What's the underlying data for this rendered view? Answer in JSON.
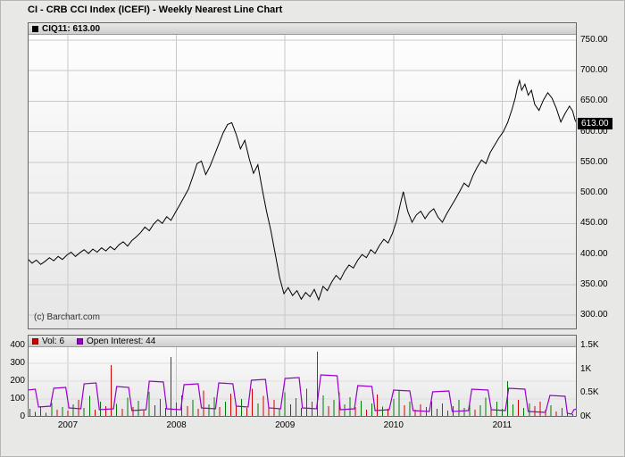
{
  "title": "CI - CRB CCI Index (ICEFI) - Weekly Nearest Line Chart",
  "copyright": "(c) Barchart.com",
  "price_tag": "613.00",
  "legend": {
    "symbol": "CIQ11: 613.00",
    "vol": "Vol: 6",
    "oi": "Open Interest: 44"
  },
  "colors": {
    "line": "#000000",
    "volume_up": "#007a00",
    "volume_down": "#d40000",
    "open_interest": "#9900cc",
    "grid": "#c9c9c9",
    "grid_light": "#dedede",
    "frame": "#666666",
    "swatch_symbol": "#000000",
    "tag_bg": "#000000",
    "tag_text": "#ffffff"
  },
  "chart_data": [
    {
      "type": "line",
      "name": "CIQ11 weekly nearest close",
      "title": "CI - CRB CCI Index (ICEFI) - Weekly Nearest Line Chart",
      "legend_position": "top-left",
      "grid": true,
      "last_value": 613.0,
      "xlim": [
        2006.63,
        2011.69
      ],
      "ylim": [
        300,
        750
      ],
      "x_ticks": [
        2007,
        2008,
        2009,
        2010,
        2011
      ],
      "x_tick_labels": [
        "2007",
        "2008",
        "2009",
        "2010",
        "2011"
      ],
      "y_ticks": [
        750,
        700,
        650,
        600,
        550,
        500,
        450,
        400,
        350,
        300
      ],
      "y_tick_labels": [
        "750.00",
        "700.00",
        "650.00",
        "600.00",
        "550.00",
        "500.00",
        "450.00",
        "400.00",
        "350.00",
        "300.00"
      ],
      "points": [
        [
          2006.63,
          392
        ],
        [
          2006.67,
          385
        ],
        [
          2006.71,
          390
        ],
        [
          2006.75,
          383
        ],
        [
          2006.79,
          388
        ],
        [
          2006.83,
          394
        ],
        [
          2006.87,
          389
        ],
        [
          2006.91,
          396
        ],
        [
          2006.95,
          391
        ],
        [
          2006.99,
          398
        ],
        [
          2007.03,
          403
        ],
        [
          2007.07,
          396
        ],
        [
          2007.11,
          402
        ],
        [
          2007.15,
          407
        ],
        [
          2007.19,
          401
        ],
        [
          2007.23,
          408
        ],
        [
          2007.27,
          403
        ],
        [
          2007.31,
          410
        ],
        [
          2007.35,
          405
        ],
        [
          2007.39,
          412
        ],
        [
          2007.43,
          407
        ],
        [
          2007.47,
          415
        ],
        [
          2007.51,
          420
        ],
        [
          2007.55,
          413
        ],
        [
          2007.59,
          422
        ],
        [
          2007.63,
          428
        ],
        [
          2007.67,
          435
        ],
        [
          2007.71,
          444
        ],
        [
          2007.75,
          438
        ],
        [
          2007.79,
          449
        ],
        [
          2007.83,
          456
        ],
        [
          2007.87,
          450
        ],
        [
          2007.91,
          461
        ],
        [
          2007.95,
          455
        ],
        [
          2007.99,
          468
        ],
        [
          2008.03,
          480
        ],
        [
          2008.07,
          493
        ],
        [
          2008.11,
          506
        ],
        [
          2008.15,
          526
        ],
        [
          2008.19,
          548
        ],
        [
          2008.23,
          552
        ],
        [
          2008.27,
          530
        ],
        [
          2008.31,
          544
        ],
        [
          2008.35,
          562
        ],
        [
          2008.39,
          580
        ],
        [
          2008.43,
          598
        ],
        [
          2008.47,
          612
        ],
        [
          2008.51,
          615
        ],
        [
          2008.55,
          596
        ],
        [
          2008.59,
          572
        ],
        [
          2008.63,
          586
        ],
        [
          2008.67,
          556
        ],
        [
          2008.71,
          532
        ],
        [
          2008.75,
          546
        ],
        [
          2008.79,
          506
        ],
        [
          2008.83,
          470
        ],
        [
          2008.87,
          438
        ],
        [
          2008.91,
          400
        ],
        [
          2008.95,
          362
        ],
        [
          2008.99,
          335
        ],
        [
          2009.03,
          345
        ],
        [
          2009.07,
          332
        ],
        [
          2009.11,
          340
        ],
        [
          2009.15,
          326
        ],
        [
          2009.19,
          337
        ],
        [
          2009.23,
          330
        ],
        [
          2009.27,
          342
        ],
        [
          2009.31,
          325
        ],
        [
          2009.35,
          347
        ],
        [
          2009.39,
          340
        ],
        [
          2009.43,
          354
        ],
        [
          2009.47,
          365
        ],
        [
          2009.51,
          358
        ],
        [
          2009.55,
          372
        ],
        [
          2009.59,
          382
        ],
        [
          2009.63,
          377
        ],
        [
          2009.67,
          390
        ],
        [
          2009.71,
          399
        ],
        [
          2009.75,
          394
        ],
        [
          2009.79,
          407
        ],
        [
          2009.83,
          401
        ],
        [
          2009.87,
          414
        ],
        [
          2009.91,
          424
        ],
        [
          2009.95,
          418
        ],
        [
          2009.99,
          434
        ],
        [
          2010.03,
          455
        ],
        [
          2010.06,
          480
        ],
        [
          2010.09,
          502
        ],
        [
          2010.13,
          470
        ],
        [
          2010.17,
          452
        ],
        [
          2010.21,
          464
        ],
        [
          2010.25,
          470
        ],
        [
          2010.29,
          458
        ],
        [
          2010.33,
          468
        ],
        [
          2010.37,
          474
        ],
        [
          2010.41,
          460
        ],
        [
          2010.45,
          452
        ],
        [
          2010.49,
          466
        ],
        [
          2010.53,
          478
        ],
        [
          2010.57,
          490
        ],
        [
          2010.61,
          503
        ],
        [
          2010.65,
          516
        ],
        [
          2010.69,
          510
        ],
        [
          2010.73,
          528
        ],
        [
          2010.77,
          542
        ],
        [
          2010.81,
          554
        ],
        [
          2010.85,
          548
        ],
        [
          2010.89,
          566
        ],
        [
          2010.93,
          578
        ],
        [
          2010.97,
          590
        ],
        [
          2011.01,
          600
        ],
        [
          2011.05,
          615
        ],
        [
          2011.09,
          636
        ],
        [
          2011.12,
          655
        ],
        [
          2011.14,
          672
        ],
        [
          2011.16,
          684
        ],
        [
          2011.18,
          668
        ],
        [
          2011.21,
          678
        ],
        [
          2011.24,
          660
        ],
        [
          2011.27,
          668
        ],
        [
          2011.3,
          645
        ],
        [
          2011.34,
          635
        ],
        [
          2011.38,
          652
        ],
        [
          2011.42,
          664
        ],
        [
          2011.46,
          655
        ],
        [
          2011.5,
          638
        ],
        [
          2011.54,
          616
        ],
        [
          2011.58,
          630
        ],
        [
          2011.62,
          642
        ],
        [
          2011.65,
          634
        ],
        [
          2011.67,
          620
        ],
        [
          2011.69,
          613
        ]
      ]
    },
    {
      "type": "bar",
      "name": "Volume",
      "current": 6,
      "ylim": [
        0,
        460
      ],
      "y_ticks": [
        400,
        300,
        200,
        100,
        0
      ],
      "y_tick_labels": [
        "400",
        "300",
        "200",
        "100",
        "0"
      ],
      "points": [
        [
          2006.65,
          45,
          "g"
        ],
        [
          2006.7,
          28,
          "r"
        ],
        [
          2006.75,
          60,
          "g"
        ],
        [
          2006.8,
          22,
          "r"
        ],
        [
          2006.85,
          78,
          "g"
        ],
        [
          2006.9,
          40,
          "r"
        ],
        [
          2006.95,
          55,
          "g"
        ],
        [
          2007.0,
          35,
          "r"
        ],
        [
          2007.05,
          70,
          "g"
        ],
        [
          2007.1,
          95,
          "r"
        ],
        [
          2007.15,
          50,
          "g"
        ],
        [
          2007.2,
          118,
          "g"
        ],
        [
          2007.25,
          40,
          "r"
        ],
        [
          2007.3,
          85,
          "g"
        ],
        [
          2007.35,
          60,
          "r"
        ],
        [
          2007.4,
          290,
          "r"
        ],
        [
          2007.45,
          72,
          "g"
        ],
        [
          2007.5,
          45,
          "r"
        ],
        [
          2007.55,
          108,
          "g"
        ],
        [
          2007.6,
          55,
          "r"
        ],
        [
          2007.65,
          90,
          "g"
        ],
        [
          2007.7,
          35,
          "r"
        ],
        [
          2007.75,
          140,
          "g"
        ],
        [
          2007.8,
          64,
          "r"
        ],
        [
          2007.85,
          100,
          "g"
        ],
        [
          2007.9,
          50,
          "r"
        ],
        [
          2007.95,
          335,
          "r"
        ],
        [
          2008.0,
          80,
          "g"
        ],
        [
          2008.05,
          120,
          "g"
        ],
        [
          2008.1,
          60,
          "r"
        ],
        [
          2008.15,
          95,
          "g"
        ],
        [
          2008.2,
          45,
          "r"
        ],
        [
          2008.25,
          148,
          "r"
        ],
        [
          2008.3,
          70,
          "g"
        ],
        [
          2008.35,
          110,
          "g"
        ],
        [
          2008.4,
          55,
          "r"
        ],
        [
          2008.45,
          85,
          "g"
        ],
        [
          2008.5,
          130,
          "r"
        ],
        [
          2008.55,
          65,
          "r"
        ],
        [
          2008.6,
          100,
          "g"
        ],
        [
          2008.65,
          50,
          "r"
        ],
        [
          2008.7,
          158,
          "r"
        ],
        [
          2008.75,
          75,
          "g"
        ],
        [
          2008.8,
          118,
          "r"
        ],
        [
          2008.85,
          55,
          "r"
        ],
        [
          2008.9,
          95,
          "r"
        ],
        [
          2008.95,
          45,
          "g"
        ],
        [
          2009.0,
          138,
          "g"
        ],
        [
          2009.05,
          70,
          "r"
        ],
        [
          2009.1,
          105,
          "g"
        ],
        [
          2009.15,
          50,
          "r"
        ],
        [
          2009.2,
          158,
          "g"
        ],
        [
          2009.25,
          85,
          "g"
        ],
        [
          2009.3,
          365,
          "g"
        ],
        [
          2009.35,
          120,
          "g"
        ],
        [
          2009.4,
          60,
          "r"
        ],
        [
          2009.45,
          95,
          "g"
        ],
        [
          2009.5,
          138,
          "r"
        ],
        [
          2009.55,
          70,
          "g"
        ],
        [
          2009.6,
          110,
          "g"
        ],
        [
          2009.65,
          55,
          "r"
        ],
        [
          2009.7,
          90,
          "g"
        ],
        [
          2009.75,
          40,
          "r"
        ],
        [
          2009.8,
          75,
          "g"
        ],
        [
          2009.85,
          125,
          "r"
        ],
        [
          2009.9,
          58,
          "g"
        ],
        [
          2009.95,
          45,
          "r"
        ],
        [
          2010.0,
          100,
          "g"
        ],
        [
          2010.05,
          148,
          "g"
        ],
        [
          2010.1,
          65,
          "r"
        ],
        [
          2010.15,
          85,
          "g"
        ],
        [
          2010.2,
          40,
          "r"
        ],
        [
          2010.25,
          70,
          "r"
        ],
        [
          2010.3,
          55,
          "g"
        ],
        [
          2010.35,
          88,
          "r"
        ],
        [
          2010.4,
          45,
          "r"
        ],
        [
          2010.45,
          75,
          "g"
        ],
        [
          2010.5,
          35,
          "g"
        ],
        [
          2010.55,
          60,
          "r"
        ],
        [
          2010.6,
          95,
          "g"
        ],
        [
          2010.65,
          50,
          "g"
        ],
        [
          2010.7,
          80,
          "g"
        ],
        [
          2010.75,
          40,
          "r"
        ],
        [
          2010.8,
          65,
          "g"
        ],
        [
          2010.85,
          108,
          "g"
        ],
        [
          2010.9,
          55,
          "r"
        ],
        [
          2010.95,
          85,
          "g"
        ],
        [
          2011.0,
          45,
          "g"
        ],
        [
          2011.05,
          200,
          "g"
        ],
        [
          2011.1,
          70,
          "g"
        ],
        [
          2011.15,
          95,
          "r"
        ],
        [
          2011.2,
          50,
          "g"
        ],
        [
          2011.25,
          75,
          "g"
        ],
        [
          2011.3,
          60,
          "r"
        ],
        [
          2011.35,
          85,
          "r"
        ],
        [
          2011.4,
          40,
          "r"
        ],
        [
          2011.45,
          65,
          "g"
        ],
        [
          2011.5,
          30,
          "r"
        ],
        [
          2011.55,
          50,
          "g"
        ],
        [
          2011.6,
          24,
          "r"
        ],
        [
          2011.65,
          14,
          "g"
        ],
        [
          2011.68,
          6,
          "r"
        ]
      ]
    },
    {
      "type": "line",
      "name": "Open Interest",
      "current": 44,
      "right_ticks": [
        1500,
        1000,
        500,
        0
      ],
      "right_tick_labels": [
        "1.5K",
        "1K",
        "0.5K",
        "0K"
      ],
      "points": [
        [
          2006.63,
          150
        ],
        [
          2006.7,
          155
        ],
        [
          2006.73,
          55
        ],
        [
          2006.84,
          60
        ],
        [
          2006.87,
          160
        ],
        [
          2006.98,
          165
        ],
        [
          2007.01,
          50
        ],
        [
          2007.12,
          45
        ],
        [
          2007.15,
          185
        ],
        [
          2007.26,
          190
        ],
        [
          2007.29,
          40
        ],
        [
          2007.42,
          45
        ],
        [
          2007.45,
          170
        ],
        [
          2007.56,
          165
        ],
        [
          2007.59,
          35
        ],
        [
          2007.72,
          40
        ],
        [
          2007.75,
          200
        ],
        [
          2007.88,
          195
        ],
        [
          2007.91,
          45
        ],
        [
          2008.04,
          40
        ],
        [
          2008.07,
          180
        ],
        [
          2008.2,
          185
        ],
        [
          2008.23,
          50
        ],
        [
          2008.36,
          45
        ],
        [
          2008.39,
          190
        ],
        [
          2008.52,
          185
        ],
        [
          2008.55,
          60
        ],
        [
          2008.66,
          55
        ],
        [
          2008.69,
          205
        ],
        [
          2008.82,
          210
        ],
        [
          2008.85,
          50
        ],
        [
          2008.96,
          45
        ],
        [
          2009.0,
          215
        ],
        [
          2009.13,
          220
        ],
        [
          2009.16,
          50
        ],
        [
          2009.29,
          45
        ],
        [
          2009.33,
          235
        ],
        [
          2009.48,
          230
        ],
        [
          2009.51,
          40
        ],
        [
          2009.64,
          45
        ],
        [
          2009.67,
          175
        ],
        [
          2009.8,
          170
        ],
        [
          2009.83,
          35
        ],
        [
          2009.96,
          40
        ],
        [
          2010.0,
          150
        ],
        [
          2010.15,
          145
        ],
        [
          2010.18,
          35
        ],
        [
          2010.33,
          30
        ],
        [
          2010.36,
          140
        ],
        [
          2010.51,
          145
        ],
        [
          2010.54,
          30
        ],
        [
          2010.69,
          35
        ],
        [
          2010.72,
          155
        ],
        [
          2010.87,
          150
        ],
        [
          2010.9,
          40
        ],
        [
          2011.03,
          35
        ],
        [
          2011.06,
          160
        ],
        [
          2011.21,
          155
        ],
        [
          2011.24,
          30
        ],
        [
          2011.4,
          25
        ],
        [
          2011.44,
          120
        ],
        [
          2011.58,
          115
        ],
        [
          2011.6,
          20
        ],
        [
          2011.64,
          15
        ],
        [
          2011.66,
          40
        ],
        [
          2011.69,
          44
        ]
      ]
    }
  ]
}
